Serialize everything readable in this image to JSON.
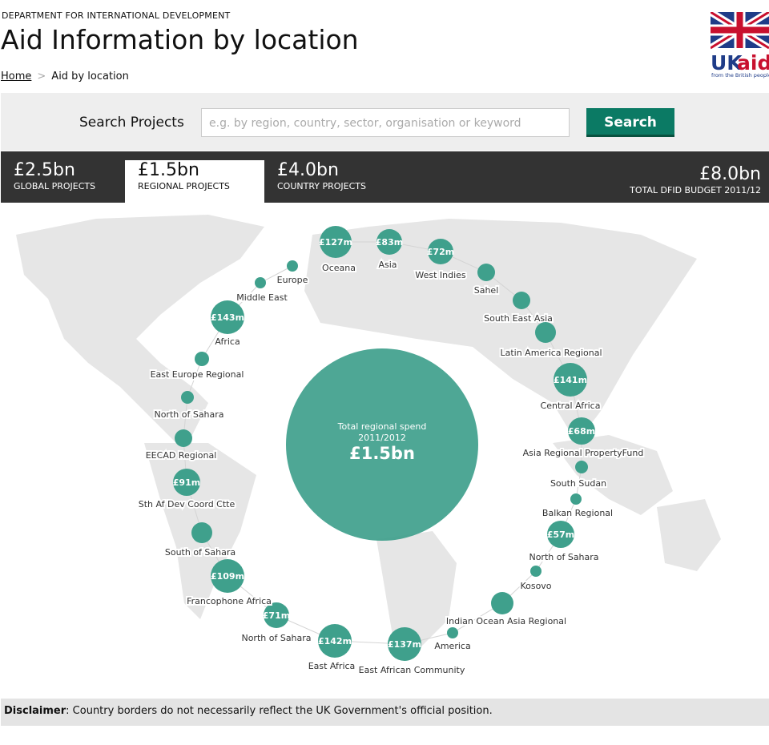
{
  "header": {
    "department": "DEPARTMENT FOR INTERNATIONAL DEVELOPMENT",
    "title": "Aid Information by location",
    "breadcrumb": [
      "Home",
      "Aid by location"
    ],
    "logo": {
      "uk": "UK",
      "aid": "aid",
      "tagline": "from the British people"
    }
  },
  "search": {
    "label": "Search Projects",
    "placeholder": "e.g. by region, country, sector, organisation or keyword",
    "button": "Search"
  },
  "tabs": [
    {
      "amount": "£2.5bn",
      "label": "GLOBAL PROJECTS"
    },
    {
      "amount": "£1.5bn",
      "label": "REGIONAL PROJECTS"
    },
    {
      "amount": "£4.0bn",
      "label": "COUNTRY PROJECTS"
    }
  ],
  "total": {
    "amount": "£8.0bn",
    "label": "TOTAL DFID BUDGET 2011/12"
  },
  "map": {
    "center": {
      "caption": "Total regional spend",
      "period": "2011/2012",
      "amount": "£1.5bn"
    },
    "nodes": [
      {
        "amount": "£127m",
        "label": "Oceana"
      },
      {
        "amount": "£83m",
        "label": "Asia"
      },
      {
        "amount": "£72m",
        "label": "West Indies"
      },
      {
        "label": "Sahel"
      },
      {
        "label": "South East Asia"
      },
      {
        "label": "Latin America Regional"
      },
      {
        "amount": "£141m",
        "label": "Central Africa"
      },
      {
        "amount": "£68m",
        "label": "Asia Regional PropertyFund"
      },
      {
        "label": "South Sudan"
      },
      {
        "label": "Balkan Regional"
      },
      {
        "amount": "£57m",
        "label": "North of Sahara"
      },
      {
        "label": "Kosovo"
      },
      {
        "label": "Indian Ocean Asia Regional"
      },
      {
        "label": "America"
      },
      {
        "amount": "£137m",
        "label": "East African Community"
      },
      {
        "amount": "£142m",
        "label": "East Africa"
      },
      {
        "amount": "£71m",
        "label": "North of Sahara"
      },
      {
        "amount": "£109m",
        "label": "Francophone Africa"
      },
      {
        "label": "South of Sahara"
      },
      {
        "amount": "£91m",
        "label": "Sth Af Dev Coord Ctte"
      },
      {
        "label": "EECAD Regional"
      },
      {
        "label": "North of Sahara"
      },
      {
        "label": "East Europe Regional"
      },
      {
        "amount": "£143m",
        "label": "Africa"
      },
      {
        "label": "Middle East"
      },
      {
        "label": "Europe"
      }
    ]
  },
  "disclaimer": {
    "label": "Disclaimer",
    "text": ": Country borders do not necessarily reflect the UK Government's official position."
  }
}
